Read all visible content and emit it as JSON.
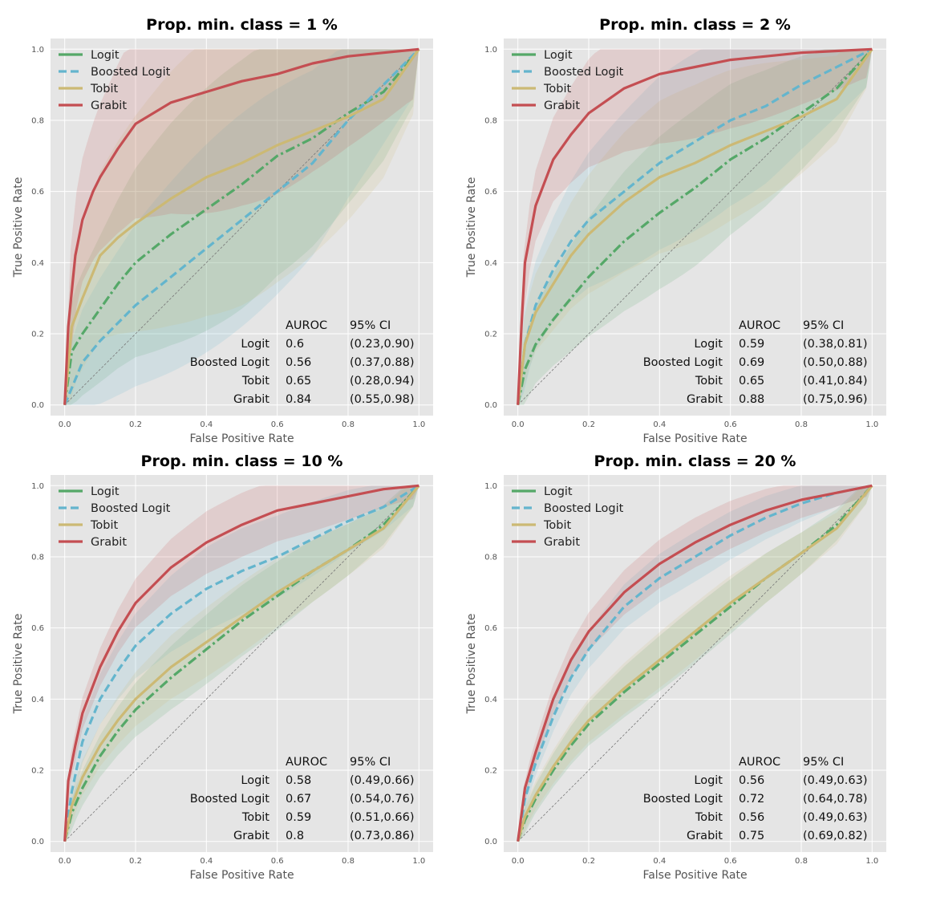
{
  "figure": {
    "colors": {
      "Logit": "#55a868",
      "Boosted Logit": "#64b5cd",
      "Tobit": "#ccb974",
      "Grabit": "#c44e52",
      "panel_bg": "#e5e5e5",
      "grid": "#ffffff",
      "diagonal": "#777777"
    }
  },
  "chart_data": [
    {
      "type": "line",
      "title": "Prop. min. class = 1 %",
      "xlabel": "False Positive Rate",
      "ylabel": "True Positive Rate",
      "xlim": [
        0,
        1
      ],
      "ylim": [
        0,
        1
      ],
      "xticks": [
        "0.0",
        "0.2",
        "0.4",
        "0.6",
        "0.8",
        "1.0"
      ],
      "yticks": [
        "0.0",
        "0.2",
        "0.4",
        "0.6",
        "0.8",
        "1.0"
      ],
      "grid": true,
      "legend_position": "top-left",
      "legend": [
        "Logit",
        "Boosted Logit",
        "Tobit",
        "Grabit"
      ],
      "table": {
        "headers": [
          "AUROC",
          "95% CI"
        ],
        "rows": [
          {
            "model": "Logit",
            "auroc": "0.6",
            "ci": "(0.23,0.90)"
          },
          {
            "model": "Boosted Logit",
            "auroc": "0.56",
            "ci": "(0.37,0.88)"
          },
          {
            "model": "Tobit",
            "auroc": "0.65",
            "ci": "(0.28,0.94)"
          },
          {
            "model": "Grabit",
            "auroc": "0.84",
            "ci": "(0.55,0.98)"
          }
        ]
      },
      "series": [
        {
          "name": "Logit",
          "x": [
            0,
            0.02,
            0.05,
            0.1,
            0.15,
            0.2,
            0.3,
            0.4,
            0.5,
            0.6,
            0.7,
            0.8,
            0.9,
            1.0
          ],
          "y": [
            0,
            0.15,
            0.2,
            0.27,
            0.34,
            0.4,
            0.48,
            0.55,
            0.62,
            0.7,
            0.75,
            0.82,
            0.88,
            1.0
          ]
        },
        {
          "name": "Boosted Logit",
          "x": [
            0,
            0.05,
            0.1,
            0.2,
            0.3,
            0.4,
            0.5,
            0.6,
            0.7,
            0.8,
            0.9,
            1.0
          ],
          "y": [
            0,
            0.12,
            0.18,
            0.28,
            0.36,
            0.44,
            0.52,
            0.6,
            0.68,
            0.8,
            0.9,
            1.0
          ]
        },
        {
          "name": "Tobit",
          "x": [
            0,
            0.02,
            0.05,
            0.1,
            0.15,
            0.2,
            0.3,
            0.4,
            0.5,
            0.6,
            0.7,
            0.8,
            0.9,
            1.0
          ],
          "y": [
            0,
            0.22,
            0.3,
            0.42,
            0.47,
            0.51,
            0.58,
            0.64,
            0.68,
            0.73,
            0.77,
            0.81,
            0.86,
            1.0
          ]
        },
        {
          "name": "Grabit",
          "x": [
            0,
            0.01,
            0.03,
            0.05,
            0.08,
            0.1,
            0.15,
            0.2,
            0.3,
            0.4,
            0.5,
            0.6,
            0.7,
            0.8,
            0.9,
            1.0
          ],
          "y": [
            0,
            0.22,
            0.42,
            0.52,
            0.6,
            0.64,
            0.72,
            0.79,
            0.85,
            0.88,
            0.91,
            0.93,
            0.96,
            0.98,
            0.99,
            1.0
          ]
        }
      ]
    },
    {
      "type": "line",
      "title": "Prop. min. class = 2 %",
      "xlabel": "False Positive Rate",
      "ylabel": "True Positive Rate",
      "xlim": [
        0,
        1
      ],
      "ylim": [
        0,
        1
      ],
      "xticks": [
        "0.0",
        "0.2",
        "0.4",
        "0.6",
        "0.8",
        "1.0"
      ],
      "yticks": [
        "0.0",
        "0.2",
        "0.4",
        "0.6",
        "0.8",
        "1.0"
      ],
      "grid": true,
      "legend_position": "top-left",
      "legend": [
        "Logit",
        "Boosted Logit",
        "Tobit",
        "Grabit"
      ],
      "table": {
        "headers": [
          "AUROC",
          "95% CI"
        ],
        "rows": [
          {
            "model": "Logit",
            "auroc": "0.59",
            "ci": "(0.38,0.81)"
          },
          {
            "model": "Boosted Logit",
            "auroc": "0.69",
            "ci": "(0.50,0.88)"
          },
          {
            "model": "Tobit",
            "auroc": "0.65",
            "ci": "(0.41,0.84)"
          },
          {
            "model": "Grabit",
            "auroc": "0.88",
            "ci": "(0.75,0.96)"
          }
        ]
      },
      "series": [
        {
          "name": "Logit",
          "x": [
            0,
            0.02,
            0.05,
            0.1,
            0.15,
            0.2,
            0.3,
            0.4,
            0.5,
            0.6,
            0.7,
            0.8,
            0.9,
            1.0
          ],
          "y": [
            0,
            0.1,
            0.17,
            0.24,
            0.3,
            0.36,
            0.46,
            0.54,
            0.61,
            0.69,
            0.75,
            0.82,
            0.89,
            1.0
          ]
        },
        {
          "name": "Boosted Logit",
          "x": [
            0,
            0.02,
            0.05,
            0.1,
            0.15,
            0.2,
            0.3,
            0.4,
            0.5,
            0.6,
            0.7,
            0.8,
            0.9,
            1.0
          ],
          "y": [
            0,
            0.17,
            0.28,
            0.38,
            0.46,
            0.52,
            0.6,
            0.68,
            0.74,
            0.8,
            0.84,
            0.9,
            0.95,
            1.0
          ]
        },
        {
          "name": "Tobit",
          "x": [
            0,
            0.02,
            0.05,
            0.1,
            0.15,
            0.2,
            0.3,
            0.4,
            0.5,
            0.6,
            0.7,
            0.8,
            0.9,
            1.0
          ],
          "y": [
            0,
            0.17,
            0.26,
            0.34,
            0.42,
            0.48,
            0.57,
            0.64,
            0.68,
            0.73,
            0.77,
            0.81,
            0.86,
            1.0
          ]
        },
        {
          "name": "Grabit",
          "x": [
            0,
            0.01,
            0.02,
            0.05,
            0.1,
            0.15,
            0.2,
            0.3,
            0.4,
            0.5,
            0.6,
            0.7,
            0.8,
            0.9,
            1.0
          ],
          "y": [
            0,
            0.22,
            0.4,
            0.56,
            0.69,
            0.76,
            0.82,
            0.89,
            0.93,
            0.95,
            0.97,
            0.98,
            0.99,
            0.995,
            1.0
          ]
        }
      ]
    },
    {
      "type": "line",
      "title": "Prop. min. class = 10 %",
      "xlabel": "False Positive Rate",
      "ylabel": "True Positive Rate",
      "xlim": [
        0,
        1
      ],
      "ylim": [
        0,
        1
      ],
      "xticks": [
        "0.0",
        "0.2",
        "0.4",
        "0.6",
        "0.8",
        "1.0"
      ],
      "yticks": [
        "0.0",
        "0.2",
        "0.4",
        "0.6",
        "0.8",
        "1.0"
      ],
      "grid": true,
      "legend_position": "top-left",
      "legend": [
        "Logit",
        "Boosted Logit",
        "Tobit",
        "Grabit"
      ],
      "table": {
        "headers": [
          "AUROC",
          "95% CI"
        ],
        "rows": [
          {
            "model": "Logit",
            "auroc": "0.58",
            "ci": "(0.49,0.66)"
          },
          {
            "model": "Boosted Logit",
            "auroc": "0.67",
            "ci": "(0.54,0.76)"
          },
          {
            "model": "Tobit",
            "auroc": "0.59",
            "ci": "(0.51,0.66)"
          },
          {
            "model": "Grabit",
            "auroc": "0.8",
            "ci": "(0.73,0.86)"
          }
        ]
      },
      "series": [
        {
          "name": "Logit",
          "x": [
            0,
            0.02,
            0.05,
            0.1,
            0.15,
            0.2,
            0.3,
            0.4,
            0.5,
            0.6,
            0.7,
            0.8,
            0.9,
            1.0
          ],
          "y": [
            0,
            0.08,
            0.15,
            0.24,
            0.31,
            0.37,
            0.46,
            0.54,
            0.62,
            0.69,
            0.76,
            0.82,
            0.89,
            1.0
          ]
        },
        {
          "name": "Boosted Logit",
          "x": [
            0,
            0.02,
            0.05,
            0.1,
            0.15,
            0.2,
            0.3,
            0.4,
            0.5,
            0.6,
            0.7,
            0.8,
            0.9,
            1.0
          ],
          "y": [
            0,
            0.14,
            0.28,
            0.4,
            0.48,
            0.55,
            0.64,
            0.71,
            0.76,
            0.8,
            0.85,
            0.9,
            0.94,
            1.0
          ]
        },
        {
          "name": "Tobit",
          "x": [
            0,
            0.02,
            0.05,
            0.1,
            0.15,
            0.2,
            0.3,
            0.4,
            0.5,
            0.6,
            0.7,
            0.8,
            0.9,
            1.0
          ],
          "y": [
            0,
            0.1,
            0.18,
            0.27,
            0.34,
            0.4,
            0.49,
            0.56,
            0.63,
            0.7,
            0.76,
            0.82,
            0.88,
            1.0
          ]
        },
        {
          "name": "Grabit",
          "x": [
            0,
            0.01,
            0.03,
            0.05,
            0.1,
            0.15,
            0.2,
            0.3,
            0.4,
            0.5,
            0.6,
            0.7,
            0.8,
            0.9,
            1.0
          ],
          "y": [
            0,
            0.17,
            0.27,
            0.36,
            0.49,
            0.59,
            0.67,
            0.77,
            0.84,
            0.89,
            0.93,
            0.95,
            0.97,
            0.99,
            1.0
          ]
        }
      ]
    },
    {
      "type": "line",
      "title": "Prop. min. class = 20 %",
      "xlabel": "False Positive Rate",
      "ylabel": "True Positive Rate",
      "xlim": [
        0,
        1
      ],
      "ylim": [
        0,
        1
      ],
      "xticks": [
        "0.0",
        "0.2",
        "0.4",
        "0.6",
        "0.8",
        "1.0"
      ],
      "yticks": [
        "0.0",
        "0.2",
        "0.4",
        "0.6",
        "0.8",
        "1.0"
      ],
      "grid": true,
      "legend_position": "top-left",
      "legend": [
        "Logit",
        "Boosted Logit",
        "Tobit",
        "Grabit"
      ],
      "table": {
        "headers": [
          "AUROC",
          "95% CI"
        ],
        "rows": [
          {
            "model": "Logit",
            "auroc": "0.56",
            "ci": "(0.49,0.63)"
          },
          {
            "model": "Boosted Logit",
            "auroc": "0.72",
            "ci": "(0.64,0.78)"
          },
          {
            "model": "Tobit",
            "auroc": "0.56",
            "ci": "(0.49,0.63)"
          },
          {
            "model": "Grabit",
            "auroc": "0.75",
            "ci": "(0.69,0.82)"
          }
        ]
      },
      "series": [
        {
          "name": "Logit",
          "x": [
            0,
            0.02,
            0.05,
            0.1,
            0.15,
            0.2,
            0.3,
            0.4,
            0.5,
            0.6,
            0.7,
            0.8,
            0.9,
            1.0
          ],
          "y": [
            0,
            0.06,
            0.12,
            0.2,
            0.27,
            0.33,
            0.42,
            0.5,
            0.58,
            0.66,
            0.74,
            0.81,
            0.89,
            1.0
          ]
        },
        {
          "name": "Boosted Logit",
          "x": [
            0,
            0.02,
            0.05,
            0.1,
            0.15,
            0.2,
            0.3,
            0.4,
            0.5,
            0.6,
            0.7,
            0.8,
            0.9,
            1.0
          ],
          "y": [
            0,
            0.12,
            0.22,
            0.35,
            0.46,
            0.54,
            0.66,
            0.74,
            0.8,
            0.86,
            0.91,
            0.95,
            0.98,
            1.0
          ]
        },
        {
          "name": "Tobit",
          "x": [
            0,
            0.02,
            0.05,
            0.1,
            0.15,
            0.2,
            0.3,
            0.4,
            0.5,
            0.6,
            0.7,
            0.8,
            0.9,
            1.0
          ],
          "y": [
            0,
            0.07,
            0.13,
            0.21,
            0.28,
            0.34,
            0.43,
            0.51,
            0.59,
            0.67,
            0.74,
            0.81,
            0.88,
            1.0
          ]
        },
        {
          "name": "Grabit",
          "x": [
            0,
            0.02,
            0.05,
            0.1,
            0.15,
            0.2,
            0.3,
            0.4,
            0.5,
            0.6,
            0.7,
            0.8,
            0.9,
            1.0
          ],
          "y": [
            0,
            0.15,
            0.25,
            0.4,
            0.51,
            0.59,
            0.7,
            0.78,
            0.84,
            0.89,
            0.93,
            0.96,
            0.98,
            1.0
          ]
        }
      ]
    }
  ]
}
